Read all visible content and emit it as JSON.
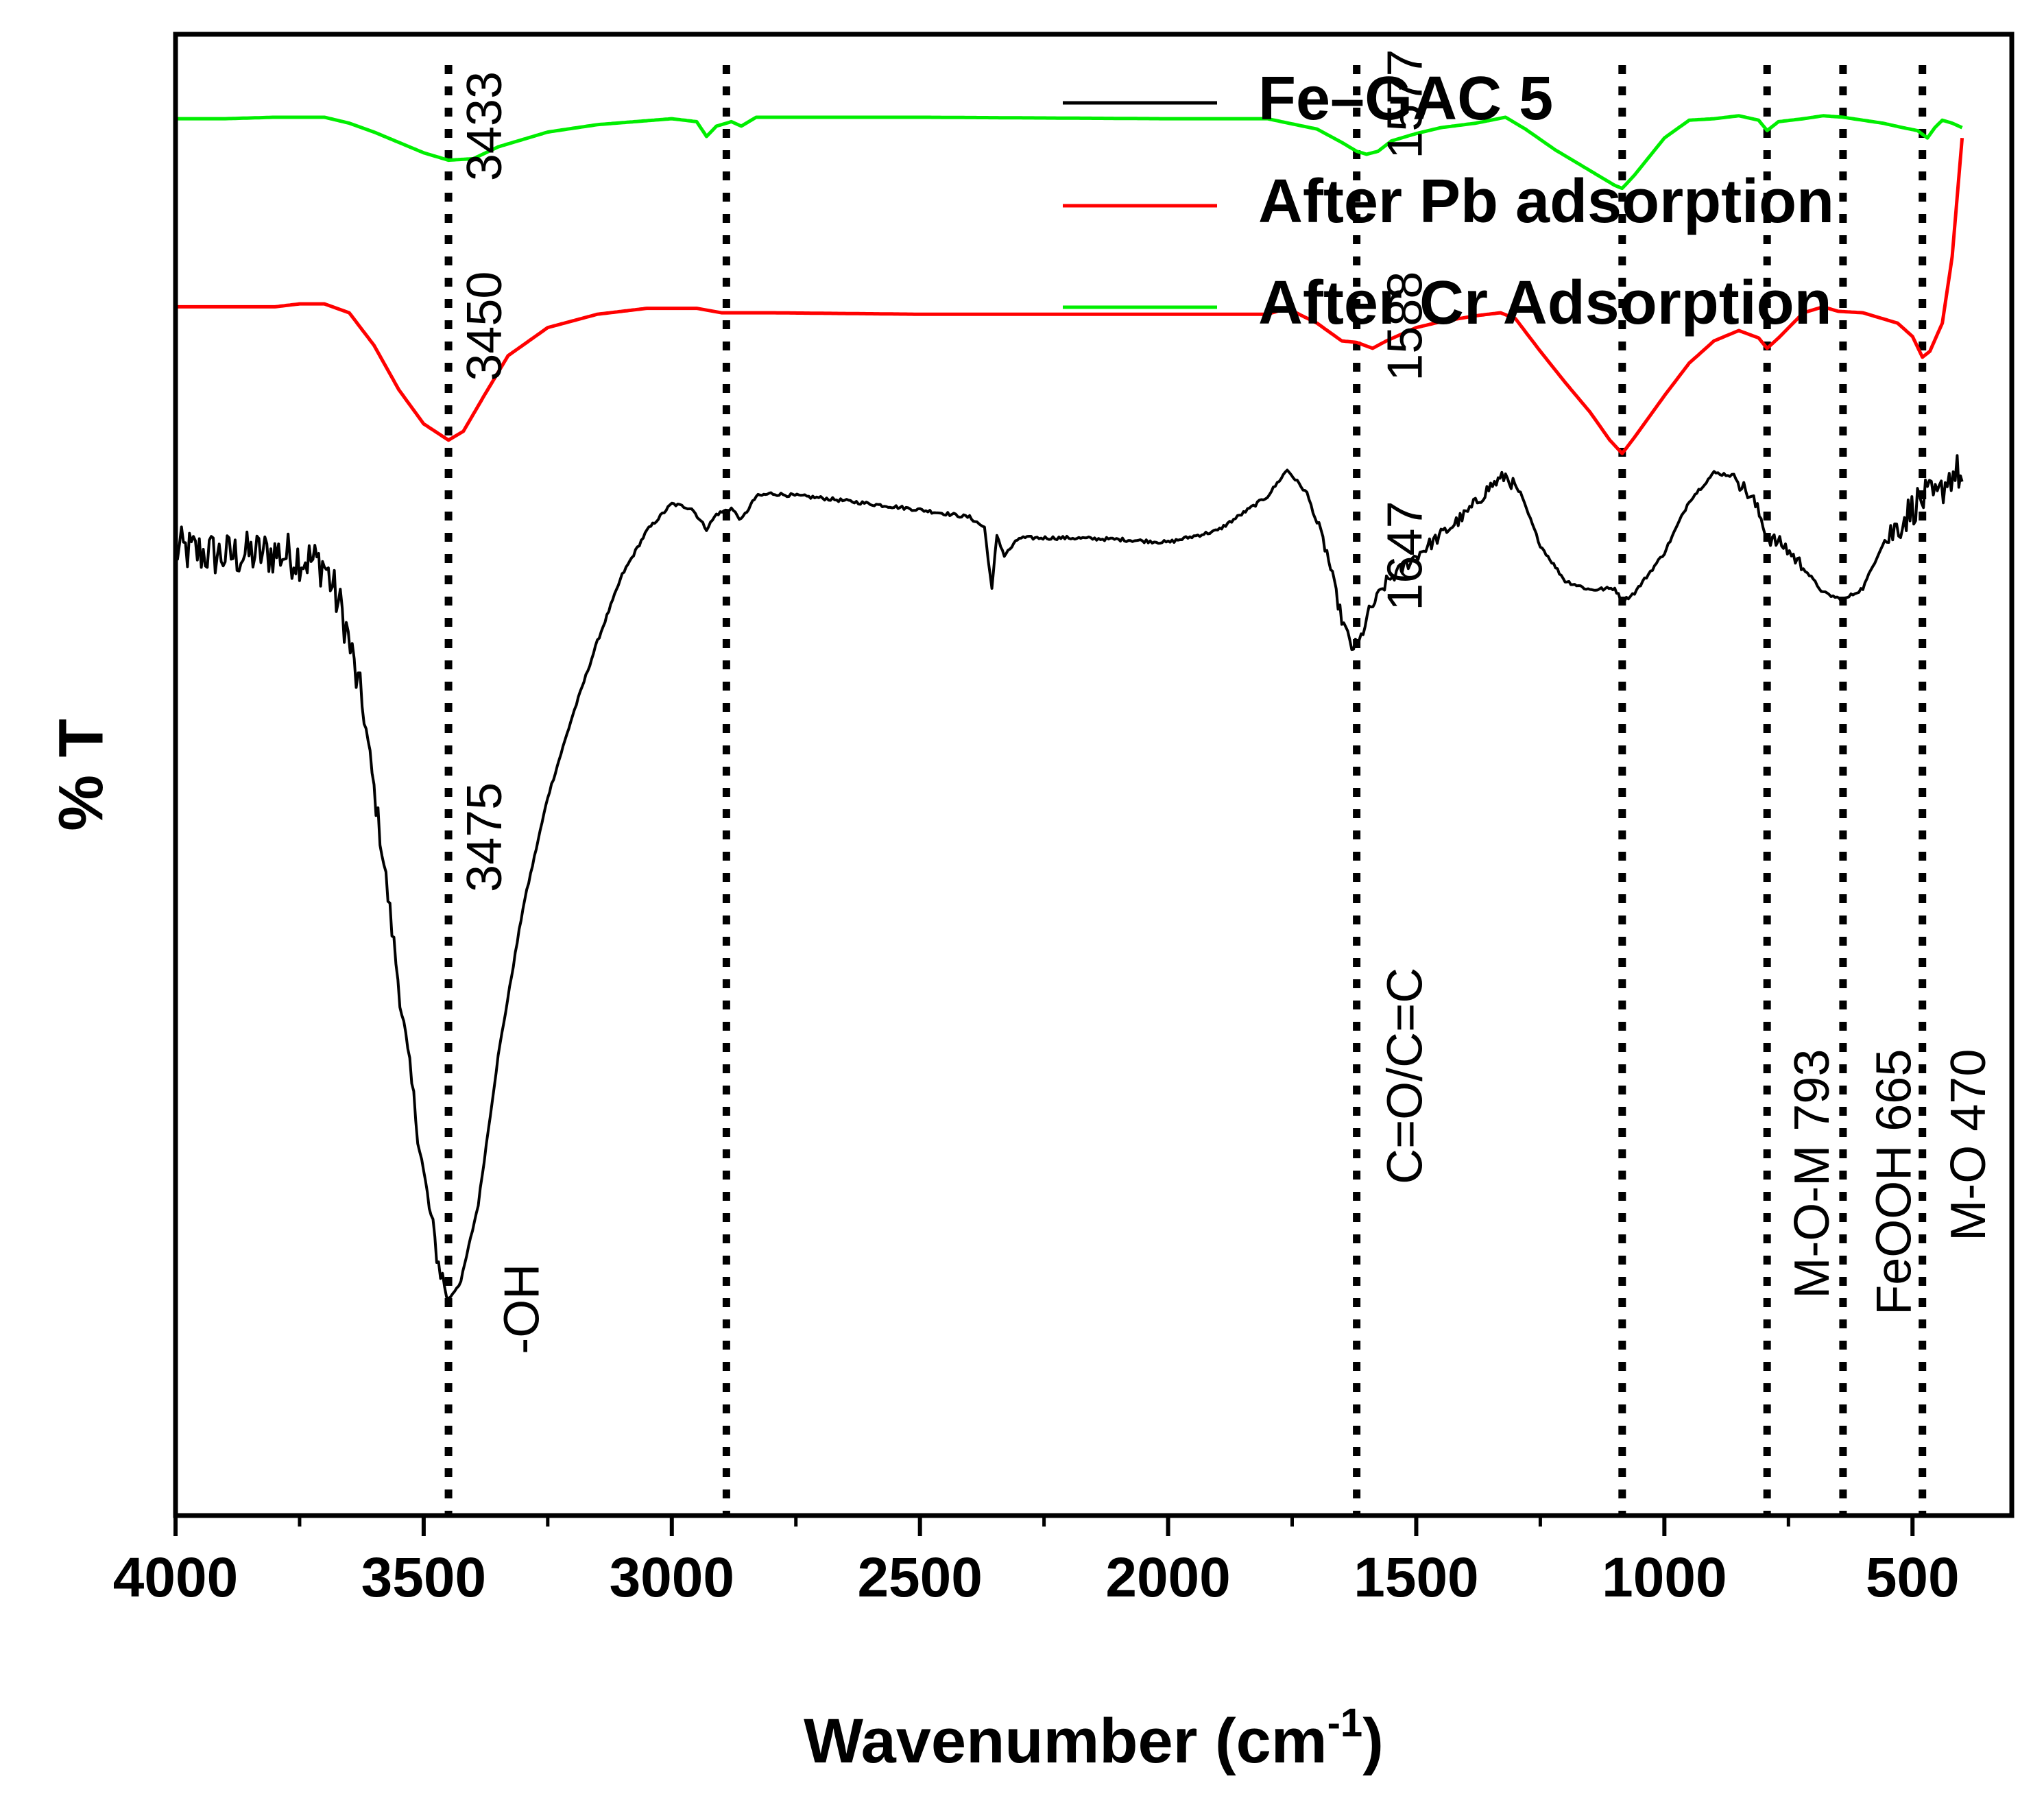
{
  "chart_data": {
    "type": "line",
    "xlabel": "Wavenumber (cm",
    "xlabel_superscript": "-1",
    "xlabel_suffix": ")",
    "ylabel": "% T",
    "xlim": [
      4000,
      300
    ],
    "x_reversed": true,
    "ylim": [
      0,
      100
    ],
    "y_ticks_shown": false,
    "grid": false,
    "legend_position": "top-right",
    "x_ticks": [
      {
        "value": 4000,
        "label": "4000"
      },
      {
        "value": 3500,
        "label": "3500"
      },
      {
        "value": 3000,
        "label": "3000"
      },
      {
        "value": 2500,
        "label": "2500"
      },
      {
        "value": 2000,
        "label": "2000"
      },
      {
        "value": 1500,
        "label": "1500"
      },
      {
        "value": 1000,
        "label": "1000"
      },
      {
        "value": 500,
        "label": "500"
      }
    ],
    "x_minor_ticks": [
      3750,
      3250,
      2750,
      2250,
      1750,
      1250,
      750
    ],
    "reference_lines": [
      3450,
      2890,
      1620,
      1085,
      793,
      640,
      480
    ],
    "series": [
      {
        "name": "Fe–GAC 5",
        "color": "#000000",
        "noisy": true,
        "points": [
          [
            4000,
            65.2
          ],
          [
            3900,
            64.8
          ],
          [
            3800,
            65
          ],
          [
            3750,
            64.7
          ],
          [
            3700,
            64.2
          ],
          [
            3660,
            60.5
          ],
          [
            3620,
            54
          ],
          [
            3580,
            44
          ],
          [
            3540,
            33
          ],
          [
            3500,
            23
          ],
          [
            3470,
            17
          ],
          [
            3450,
            14.6
          ],
          [
            3425,
            15.8
          ],
          [
            3390,
            21
          ],
          [
            3350,
            31
          ],
          [
            3300,
            41
          ],
          [
            3250,
            48.5
          ],
          [
            3200,
            54
          ],
          [
            3150,
            59
          ],
          [
            3100,
            63.5
          ],
          [
            3050,
            66.5
          ],
          [
            3000,
            68.3
          ],
          [
            2960,
            68
          ],
          [
            2930,
            66.6
          ],
          [
            2910,
            67.6
          ],
          [
            2880,
            68
          ],
          [
            2860,
            67.2
          ],
          [
            2830,
            68.8
          ],
          [
            2800,
            69
          ],
          [
            2700,
            68.7
          ],
          [
            2600,
            68.3
          ],
          [
            2500,
            67.9
          ],
          [
            2400,
            67.4
          ],
          [
            2370,
            66.7
          ],
          [
            2355,
            62.5
          ],
          [
            2345,
            66.2
          ],
          [
            2330,
            64.8
          ],
          [
            2300,
            66
          ],
          [
            2200,
            66
          ],
          [
            2100,
            65.9
          ],
          [
            2000,
            65.7
          ],
          [
            1900,
            66.5
          ],
          [
            1800,
            68.8
          ],
          [
            1760,
            70.6
          ],
          [
            1720,
            69
          ],
          [
            1680,
            65
          ],
          [
            1650,
            60.5
          ],
          [
            1630,
            58.6
          ],
          [
            1615,
            58.9
          ],
          [
            1595,
            61
          ],
          [
            1560,
            63
          ],
          [
            1500,
            64.8
          ],
          [
            1450,
            66.2
          ],
          [
            1400,
            67.6
          ],
          [
            1350,
            69.5
          ],
          [
            1320,
            70.2
          ],
          [
            1290,
            69
          ],
          [
            1250,
            65.5
          ],
          [
            1200,
            63.1
          ],
          [
            1150,
            62.5
          ],
          [
            1100,
            62.6
          ],
          [
            1085,
            61.7
          ],
          [
            1060,
            62.3
          ],
          [
            1000,
            65
          ],
          [
            950,
            68.5
          ],
          [
            900,
            70.4
          ],
          [
            860,
            70.2
          ],
          [
            820,
            68.5
          ],
          [
            790,
            66
          ],
          [
            760,
            65.5
          ],
          [
            720,
            64
          ],
          [
            680,
            62.3
          ],
          [
            640,
            61.8
          ],
          [
            600,
            62.6
          ],
          [
            560,
            65.6
          ],
          [
            520,
            67.2
          ],
          [
            490,
            68.4
          ],
          [
            470,
            68.8
          ],
          [
            450,
            68.6
          ],
          [
            430,
            70
          ],
          [
            410,
            70.5
          ],
          [
            400,
            69.8
          ]
        ]
      },
      {
        "name": "After Pb adsorption",
        "color": "#ff0000",
        "noisy": false,
        "points": [
          [
            4000,
            81.6
          ],
          [
            3900,
            81.6
          ],
          [
            3800,
            81.6
          ],
          [
            3750,
            81.8
          ],
          [
            3700,
            81.8
          ],
          [
            3650,
            81.2
          ],
          [
            3600,
            79
          ],
          [
            3550,
            76
          ],
          [
            3500,
            73.7
          ],
          [
            3450,
            72.6
          ],
          [
            3420,
            73.2
          ],
          [
            3380,
            75.5
          ],
          [
            3330,
            78.3
          ],
          [
            3250,
            80.2
          ],
          [
            3150,
            81.1
          ],
          [
            3050,
            81.5
          ],
          [
            2950,
            81.5
          ],
          [
            2900,
            81.2
          ],
          [
            2800,
            81.2
          ],
          [
            2500,
            81.1
          ],
          [
            2000,
            81.1
          ],
          [
            1800,
            81.1
          ],
          [
            1760,
            81.5
          ],
          [
            1700,
            80.5
          ],
          [
            1650,
            79.3
          ],
          [
            1620,
            79.2
          ],
          [
            1588,
            78.8
          ],
          [
            1560,
            79.3
          ],
          [
            1500,
            80.2
          ],
          [
            1450,
            80.6
          ],
          [
            1380,
            81
          ],
          [
            1330,
            81.2
          ],
          [
            1300,
            80.8
          ],
          [
            1250,
            78.6
          ],
          [
            1200,
            76.5
          ],
          [
            1150,
            74.5
          ],
          [
            1110,
            72.6
          ],
          [
            1085,
            71.7
          ],
          [
            1060,
            72.8
          ],
          [
            1000,
            75.6
          ],
          [
            950,
            77.8
          ],
          [
            900,
            79.3
          ],
          [
            850,
            80
          ],
          [
            810,
            79.5
          ],
          [
            793,
            78.8
          ],
          [
            770,
            79.5
          ],
          [
            720,
            81.2
          ],
          [
            680,
            81.6
          ],
          [
            650,
            81.3
          ],
          [
            600,
            81.2
          ],
          [
            560,
            80.8
          ],
          [
            530,
            80.5
          ],
          [
            500,
            79.6
          ],
          [
            480,
            78.2
          ],
          [
            465,
            78.6
          ],
          [
            440,
            80.5
          ],
          [
            420,
            85
          ],
          [
            400,
            93
          ]
        ]
      },
      {
        "name": "After Cr Adsorption",
        "color": "#00ee00",
        "noisy": false,
        "points": [
          [
            4000,
            94.3
          ],
          [
            3900,
            94.3
          ],
          [
            3800,
            94.4
          ],
          [
            3750,
            94.4
          ],
          [
            3700,
            94.4
          ],
          [
            3650,
            94
          ],
          [
            3600,
            93.4
          ],
          [
            3550,
            92.7
          ],
          [
            3500,
            92
          ],
          [
            3450,
            91.5
          ],
          [
            3400,
            91.6
          ],
          [
            3350,
            92.4
          ],
          [
            3250,
            93.4
          ],
          [
            3150,
            93.9
          ],
          [
            3000,
            94.3
          ],
          [
            2950,
            94.1
          ],
          [
            2930,
            93.1
          ],
          [
            2910,
            93.8
          ],
          [
            2880,
            94.1
          ],
          [
            2860,
            93.8
          ],
          [
            2830,
            94.4
          ],
          [
            2500,
            94.4
          ],
          [
            2000,
            94.3
          ],
          [
            1800,
            94.3
          ],
          [
            1700,
            93.6
          ],
          [
            1650,
            92.7
          ],
          [
            1620,
            92.1
          ],
          [
            1600,
            91.9
          ],
          [
            1577,
            92.1
          ],
          [
            1550,
            92.8
          ],
          [
            1500,
            93.3
          ],
          [
            1450,
            93.7
          ],
          [
            1380,
            94
          ],
          [
            1320,
            94.4
          ],
          [
            1280,
            93.6
          ],
          [
            1220,
            92.2
          ],
          [
            1150,
            90.8
          ],
          [
            1100,
            89.8
          ],
          [
            1085,
            89.6
          ],
          [
            1060,
            90.5
          ],
          [
            1000,
            93
          ],
          [
            950,
            94.2
          ],
          [
            900,
            94.3
          ],
          [
            850,
            94.5
          ],
          [
            810,
            94.2
          ],
          [
            793,
            93.5
          ],
          [
            770,
            94.1
          ],
          [
            720,
            94.3
          ],
          [
            680,
            94.5
          ],
          [
            640,
            94.4
          ],
          [
            600,
            94.2
          ],
          [
            560,
            94
          ],
          [
            520,
            93.7
          ],
          [
            490,
            93.5
          ],
          [
            470,
            93
          ],
          [
            455,
            93.7
          ],
          [
            440,
            94.2
          ],
          [
            420,
            94
          ],
          [
            400,
            93.7
          ]
        ]
      }
    ],
    "annotations": [
      {
        "text": "3433",
        "x": 3370,
        "y": 97.5
      },
      {
        "text": "3450",
        "x": 3370,
        "y": 84.0
      },
      {
        "text": "3475",
        "x": 3370,
        "y": 49.5
      },
      {
        "text": "-OH",
        "x": 3295,
        "y": 17.0
      },
      {
        "text": "1577",
        "x": 1515,
        "y": 99.0
      },
      {
        "text": "1588",
        "x": 1515,
        "y": 84.0
      },
      {
        "text": "1647",
        "x": 1515,
        "y": 68.5
      },
      {
        "text": "C=O/C=C",
        "x": 1515,
        "y": 37.0
      },
      {
        "text": "M-O-M 793",
        "x": 695,
        "y": 31.5
      },
      {
        "text": "FeOOH 665",
        "x": 530,
        "y": 31.5
      },
      {
        "text": "M-O 470",
        "x": 380,
        "y": 31.5
      }
    ]
  }
}
